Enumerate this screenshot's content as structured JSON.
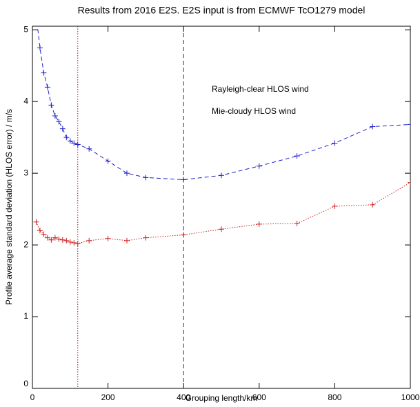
{
  "chart_data": {
    "type": "line",
    "title": "Results from 2016 E2S.  E2S input is from ECMWF TcO1279 model",
    "xlabel": "Grouping length/km",
    "ylabel": "Profile average standard deviation (HLOS error) / m/s",
    "xlim": [
      0,
      1000
    ],
    "xticks": [
      0,
      200,
      400,
      600,
      800,
      1000
    ],
    "ylim": [
      0,
      5.05
    ],
    "yticks": [
      0,
      1,
      2,
      3,
      4,
      5
    ],
    "x": [
      10,
      20,
      30,
      40,
      50,
      60,
      70,
      80,
      90,
      100,
      110,
      120,
      150,
      200,
      250,
      300,
      400,
      500,
      600,
      700,
      800,
      900,
      1000
    ],
    "series": [
      {
        "name": "Rayleigh-clear HLOS wind",
        "color": "#1f1fcc",
        "style": "dashed",
        "values": [
          5.2,
          4.75,
          4.4,
          4.2,
          3.95,
          3.8,
          3.72,
          3.62,
          3.5,
          3.45,
          3.42,
          3.4,
          3.34,
          3.17,
          3.0,
          2.94,
          2.91,
          2.97,
          3.1,
          3.24,
          3.42,
          3.65,
          3.68
        ]
      },
      {
        "name": "Mie-cloudy HLOS wind",
        "color": "#cc1f1f",
        "style": "dotted",
        "values": [
          2.32,
          2.2,
          2.15,
          2.1,
          2.07,
          2.1,
          2.08,
          2.07,
          2.06,
          2.04,
          2.03,
          2.02,
          2.06,
          2.09,
          2.06,
          2.1,
          2.14,
          2.22,
          2.29,
          2.3,
          2.54,
          2.56,
          2.87
        ]
      }
    ],
    "reference_lines": [
      {
        "x": 120,
        "color": "#8b1a1a",
        "style": "dotted"
      },
      {
        "x": 400,
        "color": "#1f1fcc",
        "style": "dashed"
      }
    ]
  }
}
